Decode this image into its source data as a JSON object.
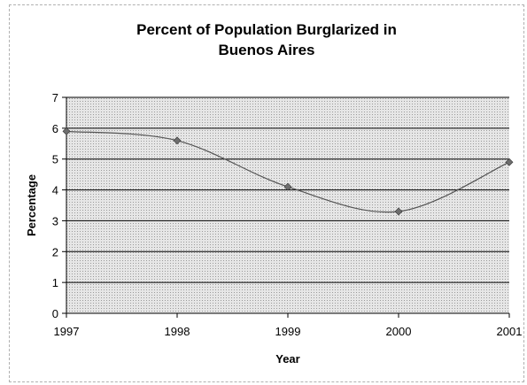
{
  "chart_data": {
    "type": "line",
    "title_lines": [
      "Percent of Population Burglarized in",
      "Buenos Aires"
    ],
    "xlabel": "Year",
    "ylabel": "Percentage",
    "x": [
      1997,
      1998,
      1999,
      2000,
      2001
    ],
    "values": [
      5.9,
      5.6,
      4.1,
      3.3,
      4.9
    ],
    "ylim": [
      0,
      7
    ],
    "yticks": [
      0,
      1,
      2,
      3,
      4,
      5,
      6,
      7
    ],
    "smooth": true,
    "grid": "horizontal",
    "legend": "none",
    "colors": {
      "line": "#555555",
      "marker": "#6e6e6e",
      "grid": "#000000",
      "plot_bg": "#d9d9d9"
    }
  }
}
